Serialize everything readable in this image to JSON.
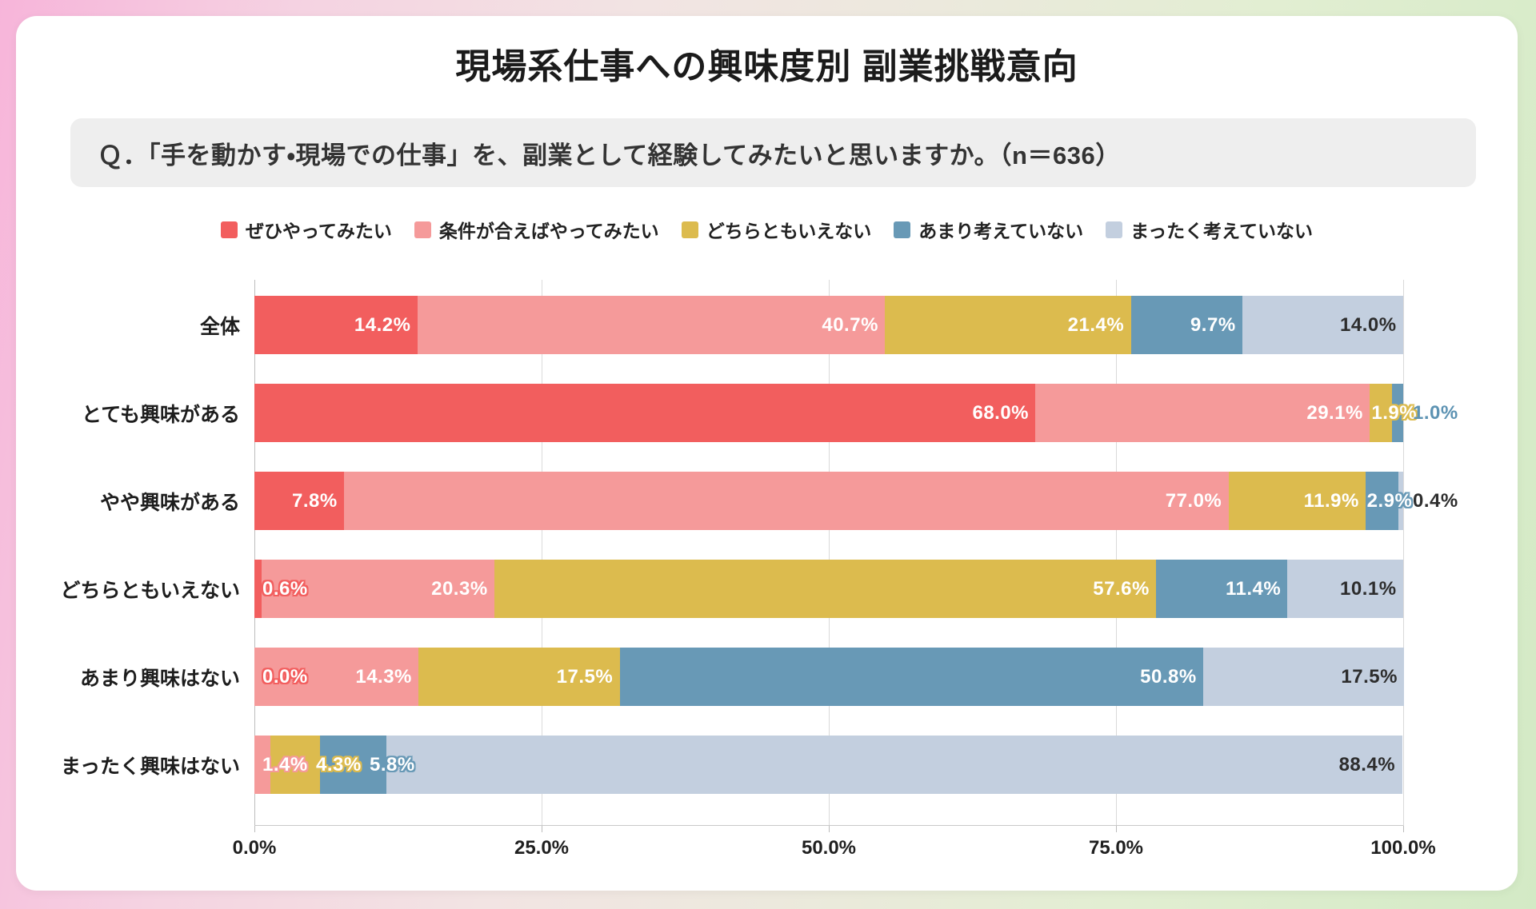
{
  "title": "現場系仕事への興味度別 副業挑戦意向",
  "question": "Ｑ．「手を動かす・現場での仕事」を、副業として経験してみたいと思いますか。（n＝636）",
  "colors": {
    "card_bg": "#ffffff",
    "question_bg": "#eeeeee",
    "frame_gradient_left": "#f7b5da",
    "frame_gradient_right": "#d3eac5",
    "outside_label_blue": "#5d93b3",
    "dark_label": "#2d2d2d"
  },
  "chart_data": {
    "type": "bar",
    "variant": "horizontal-stacked-100",
    "legend_position": "top",
    "grid": true,
    "xlim": [
      0,
      100
    ],
    "xticks": [
      "0.0%",
      "25.0%",
      "50.0%",
      "75.0%",
      "100.0%"
    ],
    "categories": [
      "全体",
      "とても興味がある",
      "やや興味がある",
      "どちらともいえない",
      "あまり興味はない",
      "まったく興味はない"
    ],
    "series": [
      {
        "name": "ぜひやってみたい",
        "color": "#f25e5e",
        "values": [
          14.2,
          68.0,
          7.8,
          0.6,
          0.0,
          0.0
        ]
      },
      {
        "name": "条件が合えばやってみたい",
        "color": "#f59a9a",
        "values": [
          40.7,
          29.1,
          77.0,
          20.3,
          14.3,
          1.4
        ]
      },
      {
        "name": "どちらともいえない",
        "color": "#dcbb4e",
        "values": [
          21.4,
          1.9,
          11.9,
          57.6,
          17.5,
          4.3
        ]
      },
      {
        "name": "あまり考えていない",
        "color": "#6899b6",
        "values": [
          9.7,
          1.0,
          2.9,
          11.4,
          50.8,
          5.8
        ]
      },
      {
        "name": "まったく考えていない",
        "color": "#c3cfdf",
        "values": [
          14.0,
          0.0,
          0.4,
          10.1,
          17.5,
          88.4
        ]
      }
    ],
    "value_labels": [
      [
        "14.2%",
        "40.7%",
        "21.4%",
        "9.7%",
        "14.0%"
      ],
      [
        "68.0%",
        "29.1%",
        "1.9%",
        "1.0%",
        ""
      ],
      [
        "7.8%",
        "77.0%",
        "11.9%",
        "2.9%",
        "0.4%"
      ],
      [
        "0.6%",
        "20.3%",
        "57.6%",
        "11.4%",
        "10.1%"
      ],
      [
        "0.0%",
        "14.3%",
        "17.5%",
        "50.8%",
        "17.5%"
      ],
      [
        "",
        "1.4%",
        "4.3%",
        "5.8%",
        "88.4%"
      ]
    ],
    "label_modes": [
      [
        "in",
        "in",
        "in",
        "in",
        "in"
      ],
      [
        "in",
        "in",
        "in",
        "out",
        "none"
      ],
      [
        "in",
        "in",
        "in",
        "in",
        "out"
      ],
      [
        "in",
        "in",
        "in",
        "in",
        "in"
      ],
      [
        "in",
        "in",
        "in",
        "in",
        "in"
      ],
      [
        "none",
        "in",
        "in",
        "in",
        "in"
      ]
    ]
  }
}
